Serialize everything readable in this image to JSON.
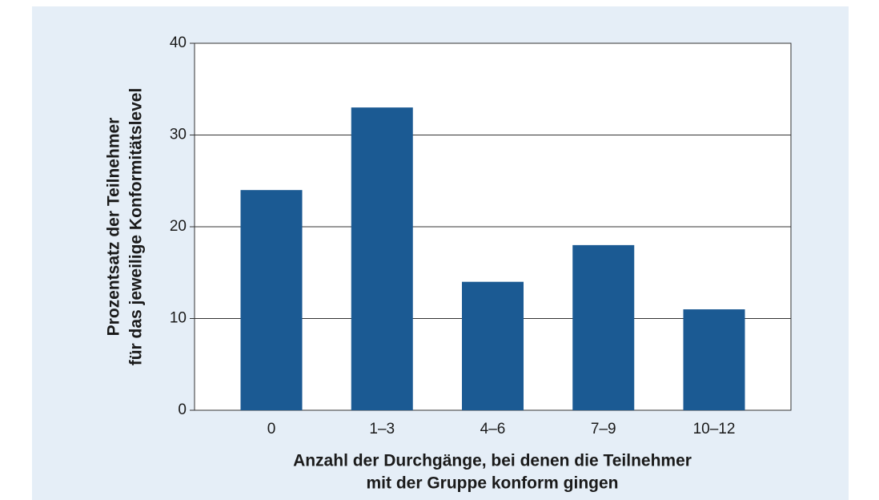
{
  "chart_data": {
    "type": "bar",
    "categories": [
      "0",
      "1–3",
      "4–6",
      "7–9",
      "10–12"
    ],
    "values": [
      24,
      33,
      14,
      18,
      11
    ],
    "color": "#1b5a93",
    "ylim": [
      0,
      40
    ],
    "yticks": [
      0,
      10,
      20,
      30,
      40
    ],
    "grid": true,
    "xlabel": [
      "Anzahl der Durchgänge, bei denen die Teilnehmer",
      "mit der Gruppe konform gingen"
    ],
    "ylabel": [
      "Prozentsatz der Teilnehmer",
      "für das jeweilige Konformitätslevel"
    ]
  }
}
